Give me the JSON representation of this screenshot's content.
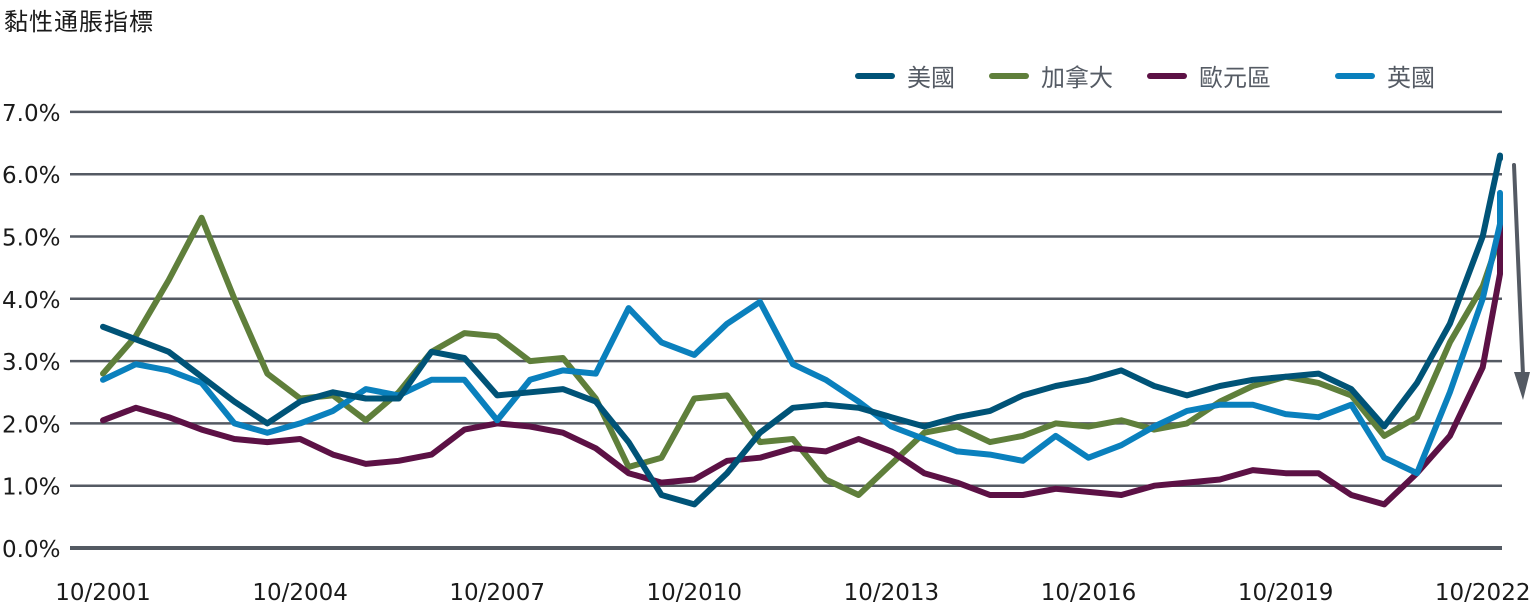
{
  "title": "黏性通脹指標",
  "legend": [
    {
      "label": "美國",
      "color": "#005377"
    },
    {
      "label": "加拿大",
      "color": "#5f7f3b"
    },
    {
      "label": "歐元區",
      "color": "#5c1145"
    },
    {
      "label": "英國",
      "color": "#0a80bd"
    }
  ],
  "axis_color": "#545a63",
  "chart_data": {
    "type": "line",
    "title": "黏性通脹指標",
    "xlabel": "",
    "ylabel": "",
    "ylim": [
      0,
      7
    ],
    "yticks": [
      "0.0%",
      "1.0%",
      "2.0%",
      "3.0%",
      "4.0%",
      "5.0%",
      "6.0%",
      "7.0%"
    ],
    "xticks": [
      "10/2001",
      "10/2004",
      "10/2007",
      "10/2010",
      "10/2013",
      "10/2016",
      "10/2019",
      "10/2022"
    ],
    "grid": true,
    "legend_position": "top-right",
    "annotation": "downward arrow at right edge indicating expected decline",
    "x": [
      2001.0,
      2001.5,
      2002.0,
      2002.5,
      2003.0,
      2003.5,
      2004.0,
      2004.5,
      2005.0,
      2005.5,
      2006.0,
      2006.5,
      2007.0,
      2007.5,
      2008.0,
      2008.5,
      2009.0,
      2009.5,
      2010.0,
      2010.5,
      2011.0,
      2011.5,
      2012.0,
      2012.5,
      2013.0,
      2013.5,
      2014.0,
      2014.5,
      2015.0,
      2015.5,
      2016.0,
      2016.5,
      2017.0,
      2017.5,
      2018.0,
      2018.5,
      2019.0,
      2019.5,
      2020.0,
      2020.5,
      2021.0,
      2021.5,
      2022.0,
      2022.5,
      2023.0
    ],
    "series": [
      {
        "name": "美國",
        "color": "#005377",
        "values": [
          3.55,
          3.35,
          3.15,
          2.75,
          2.35,
          2.0,
          2.35,
          2.5,
          2.4,
          2.4,
          3.15,
          3.05,
          2.45,
          2.5,
          2.55,
          2.35,
          1.7,
          0.85,
          0.7,
          1.2,
          1.85,
          2.25,
          2.3,
          2.25,
          2.1,
          1.95,
          2.1,
          2.2,
          2.45,
          2.6,
          2.7,
          2.85,
          2.6,
          2.45,
          2.6,
          2.7,
          2.75,
          2.8,
          2.55,
          1.95,
          2.65,
          3.6,
          5.0,
          6.3,
          6.25
        ]
      },
      {
        "name": "加拿大",
        "color": "#5f7f3b",
        "values": [
          2.8,
          3.4,
          4.3,
          5.3,
          4.0,
          2.8,
          2.4,
          2.45,
          2.05,
          2.5,
          3.15,
          3.45,
          3.4,
          3.0,
          3.05,
          2.4,
          1.3,
          1.45,
          2.4,
          2.45,
          1.7,
          1.75,
          1.1,
          0.85,
          1.35,
          1.85,
          1.95,
          1.7,
          1.8,
          2.0,
          1.95,
          2.05,
          1.9,
          2.0,
          2.35,
          2.6,
          2.75,
          2.65,
          2.45,
          1.8,
          2.1,
          3.3,
          4.2,
          5.0,
          5.05
        ]
      },
      {
        "name": "歐元區",
        "color": "#5c1145",
        "values": [
          2.05,
          2.25,
          2.1,
          1.9,
          1.75,
          1.7,
          1.75,
          1.5,
          1.35,
          1.4,
          1.5,
          1.9,
          2.0,
          1.95,
          1.85,
          1.6,
          1.2,
          1.05,
          1.1,
          1.4,
          1.45,
          1.6,
          1.55,
          1.75,
          1.55,
          1.2,
          1.05,
          0.85,
          0.85,
          0.95,
          0.9,
          0.85,
          1.0,
          1.05,
          1.1,
          1.25,
          1.2,
          1.2,
          0.85,
          0.7,
          1.2,
          1.8,
          2.9,
          4.4,
          5.3
        ]
      },
      {
        "name": "英國",
        "color": "#0a80bd",
        "values": [
          2.7,
          2.95,
          2.85,
          2.65,
          2.0,
          1.85,
          2.0,
          2.2,
          2.55,
          2.45,
          2.7,
          2.7,
          2.05,
          2.7,
          2.85,
          2.8,
          3.85,
          3.3,
          3.1,
          3.6,
          3.95,
          2.95,
          2.7,
          2.35,
          1.95,
          1.75,
          1.55,
          1.5,
          1.4,
          1.8,
          1.45,
          1.65,
          1.95,
          2.2,
          2.3,
          2.3,
          2.15,
          2.1,
          2.3,
          1.45,
          1.2,
          2.5,
          4.0,
          5.2,
          5.7
        ]
      }
    ]
  }
}
